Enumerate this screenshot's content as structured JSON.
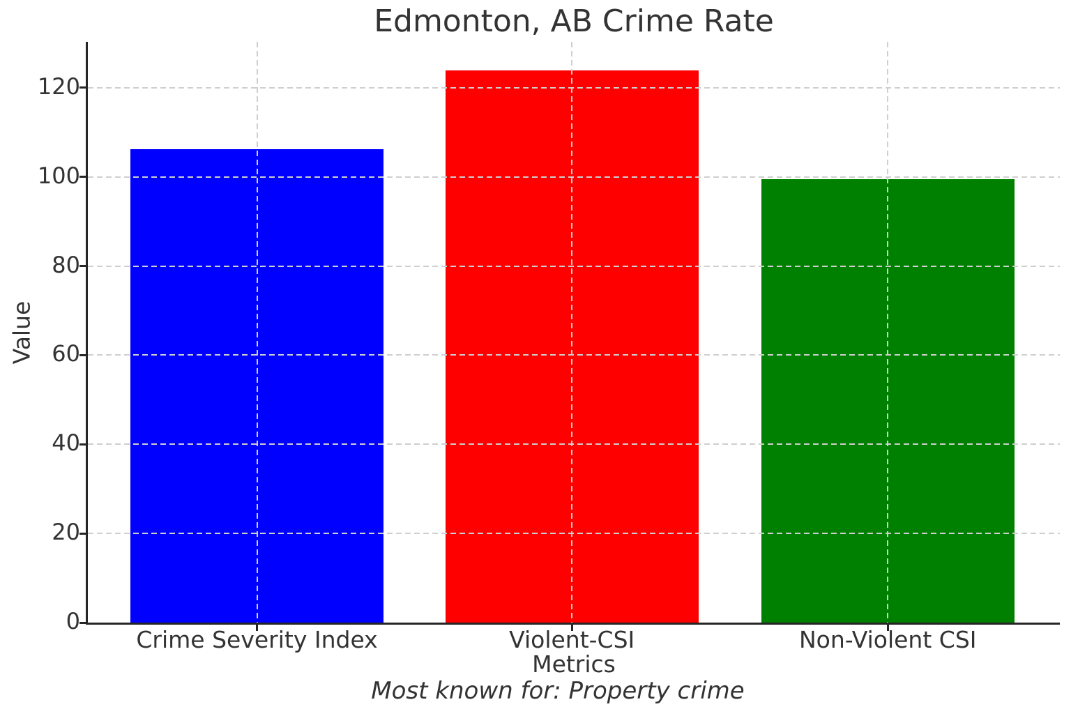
{
  "chart_data": {
    "type": "bar",
    "title": "Edmonton, AB Crime Rate",
    "xlabel": "Metrics",
    "ylabel": "Value",
    "footnote": "Most known for: Property crime",
    "categories": [
      "Crime Severity Index",
      "Violent-CSI",
      "Non-Violent CSI"
    ],
    "values": [
      106.2,
      123.9,
      99.5
    ],
    "bar_colors": [
      "#0000ff",
      "#ff0000",
      "#008000"
    ],
    "ylim": [
      0,
      130.3
    ],
    "yticks": [
      0,
      20,
      40,
      60,
      80,
      100,
      120
    ],
    "grid": {
      "style": "dashed",
      "color": "#cfcfcf",
      "horizontal": true,
      "vertical": true,
      "drawn_above_bars": true
    },
    "legend": "none",
    "axis_color": "#262626",
    "text_color": "#333333",
    "background_color": "#ffffff"
  }
}
